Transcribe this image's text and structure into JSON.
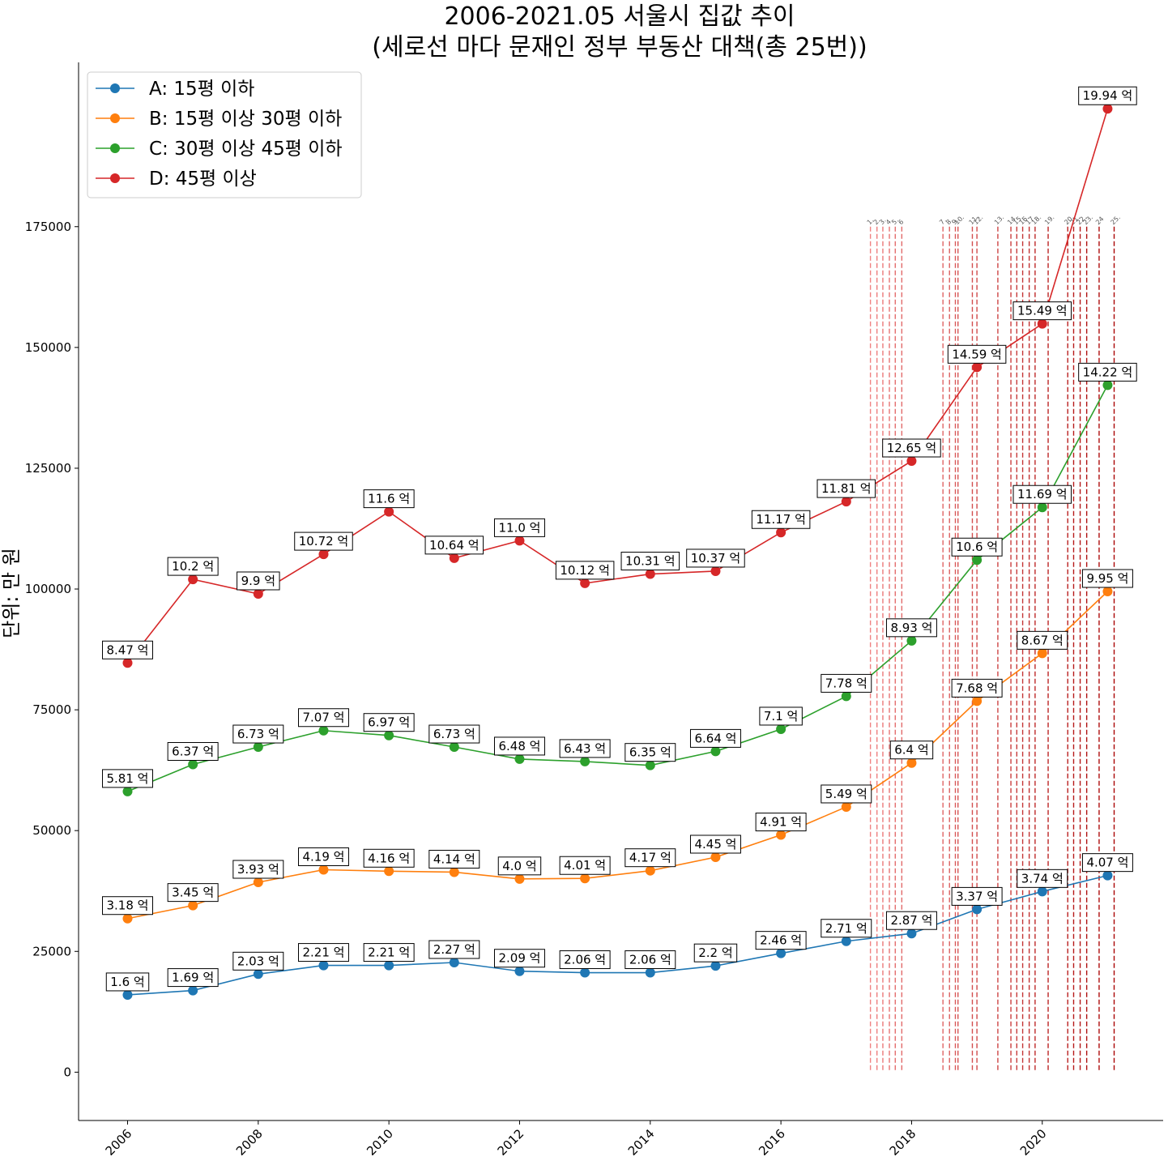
{
  "chart_data": {
    "type": "line",
    "title_line1": "2006-2021.05 서울시 집값 추이",
    "title_line2": "(세로선 마다 문재인 정부 부동산 대책(총 25번))",
    "ylabel": "단위: 만 원",
    "xlabel": "",
    "xlim": [
      2005.25,
      2021.85
    ],
    "ylim": [
      -10000,
      209000
    ],
    "x_ticks": [
      2006,
      2008,
      2010,
      2012,
      2014,
      2016,
      2018,
      2020
    ],
    "y_ticks": [
      0,
      25000,
      50000,
      75000,
      100000,
      125000,
      150000,
      175000
    ],
    "legend_position": "upper-left",
    "value_unit": "억",
    "x": [
      2006,
      2007,
      2008,
      2009,
      2010,
      2011,
      2012,
      2013,
      2014,
      2015,
      2016,
      2017,
      2018,
      2019,
      2020,
      2021
    ],
    "series": [
      {
        "name": "A: 15평 이하",
        "color": "#1f77b4",
        "values": [
          16000,
          16900,
          20300,
          22100,
          22100,
          22700,
          20900,
          20600,
          20600,
          22000,
          24600,
          27100,
          28700,
          33700,
          37400,
          40700
        ],
        "labels": [
          "1.6",
          "1.69",
          "2.03",
          "2.21",
          "2.21",
          "2.27",
          "2.09",
          "2.06",
          "2.06",
          "2.2",
          "2.46",
          "2.71",
          "2.87",
          "3.37",
          "3.74",
          "4.07"
        ]
      },
      {
        "name": "B: 15평 이상 30평 이하",
        "color": "#ff7f0e",
        "values": [
          31800,
          34500,
          39300,
          41900,
          41600,
          41400,
          40000,
          40100,
          41700,
          44500,
          49100,
          54900,
          64000,
          76800,
          86700,
          99500
        ],
        "labels": [
          "3.18",
          "3.45",
          "3.93",
          "4.19",
          "4.16",
          "4.14",
          "4.0",
          "4.01",
          "4.17",
          "4.45",
          "4.91",
          "5.49",
          "6.4",
          "7.68",
          "8.67",
          "9.95"
        ]
      },
      {
        "name": "C: 30평 이상 45평 이하",
        "color": "#2ca02c",
        "values": [
          58100,
          63700,
          67300,
          70700,
          69700,
          67300,
          64800,
          64300,
          63500,
          66400,
          71000,
          77800,
          89300,
          106000,
          116900,
          142200
        ],
        "labels": [
          "5.81",
          "6.37",
          "6.73",
          "7.07",
          "6.97",
          "6.73",
          "6.48",
          "6.43",
          "6.35",
          "6.64",
          "7.1",
          "7.78",
          "8.93",
          "10.6",
          "11.69",
          "14.22"
        ]
      },
      {
        "name": "D: 45평 이상",
        "color": "#d62728",
        "values": [
          84700,
          102000,
          99000,
          107200,
          116000,
          106400,
          110000,
          101200,
          103100,
          103700,
          111700,
          118100,
          126500,
          145900,
          154900,
          199400
        ],
        "labels": [
          "8.47",
          "10.2",
          "9.9",
          "10.72",
          "11.6",
          "10.64",
          "11.0",
          "10.12",
          "10.31",
          "10.37",
          "11.17",
          "11.81",
          "12.65",
          "14.59",
          "15.49",
          "19.94"
        ]
      }
    ],
    "policy_lines": {
      "top_value": 175000,
      "x": [
        2017.37,
        2017.47,
        2017.56,
        2017.66,
        2017.75,
        2017.85,
        2018.48,
        2018.58,
        2018.67,
        2018.71,
        2018.93,
        2019.0,
        2019.32,
        2019.52,
        2019.61,
        2019.7,
        2019.8,
        2019.89,
        2020.09,
        2020.39,
        2020.48,
        2020.58,
        2020.68,
        2020.87,
        2021.1
      ],
      "labels": [
        "1.",
        "2.",
        "3.",
        "4.",
        "5.",
        "6",
        "7.",
        "8.",
        "9.",
        "10.",
        "11.",
        "12.",
        "13.",
        "14.",
        "15.",
        "16.",
        "17.",
        "18.",
        "19.",
        "20.",
        "21.",
        "22.",
        "23.",
        "24",
        "25."
      ]
    }
  }
}
